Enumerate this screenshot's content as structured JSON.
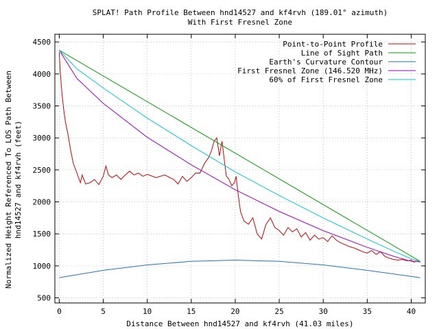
{
  "chart_data": {
    "type": "line",
    "title_line1": "SPLAT! Path Profile Between hnd14527 and kf4rvh (189.01° azimuth)",
    "title_line2": "With First Fresnel Zone",
    "xlabel": "Distance Between hnd14527 and kf4rvh (41.03 miles)",
    "ylabel_line1": "Normalized Height Referenced To LOS Path Between",
    "ylabel_line2": "hnd14527 and kf4rvh (feet)",
    "xlim": [
      -0.5,
      41.6
    ],
    "ylim": [
      420,
      4620
    ],
    "x_ticks": [
      0,
      5,
      10,
      15,
      20,
      25,
      30,
      35,
      40
    ],
    "y_ticks": [
      500,
      1000,
      1500,
      2000,
      2500,
      3000,
      3500,
      4000,
      4500
    ],
    "x_tick_labels": [
      "0",
      "5",
      "10",
      "15",
      "20",
      "25",
      "30",
      "35",
      "40"
    ],
    "y_tick_labels": [
      "500",
      "1000",
      "1500",
      "2000",
      "2500",
      "3000",
      "3500",
      "4000",
      "4500"
    ],
    "legend_position": "top-right",
    "series": [
      {
        "name": "Point-to-Point Profile",
        "color": "#cc0000",
        "x": [
          0,
          0.1,
          0.3,
          0.5,
          0.7,
          1.0,
          1.3,
          1.6,
          2.0,
          2.4,
          2.6,
          3.0,
          3.5,
          4.0,
          4.5,
          5.0,
          5.3,
          5.6,
          6.0,
          6.5,
          7.0,
          7.5,
          8.0,
          8.5,
          9.0,
          9.5,
          10.0,
          11.0,
          12.0,
          13.0,
          13.5,
          14.0,
          14.5,
          15.0,
          15.5,
          16.0,
          16.5,
          17.0,
          17.3,
          17.6,
          17.9,
          18.2,
          18.5,
          18.8,
          19.0,
          19.3,
          19.6,
          19.9,
          20.1,
          20.3,
          20.6,
          21.0,
          21.5,
          22.0,
          22.5,
          23.0,
          23.5,
          24.0,
          24.5,
          25.0,
          25.5,
          26.0,
          26.5,
          27.0,
          27.5,
          28.0,
          28.5,
          29.0,
          29.5,
          30.0,
          30.5,
          31.0,
          31.5,
          32.0,
          32.5,
          33.0,
          33.5,
          34.0,
          34.5,
          35.0,
          35.5,
          36.0,
          36.5,
          37.0,
          37.5,
          38.0,
          38.5,
          39.0,
          39.5,
          40.0,
          40.3,
          40.6,
          41.03
        ],
        "y": [
          4340,
          4050,
          3700,
          3450,
          3250,
          3050,
          2800,
          2600,
          2450,
          2300,
          2420,
          2280,
          2300,
          2350,
          2270,
          2400,
          2560,
          2420,
          2380,
          2420,
          2350,
          2420,
          2480,
          2420,
          2450,
          2400,
          2430,
          2380,
          2420,
          2350,
          2280,
          2400,
          2320,
          2380,
          2450,
          2450,
          2600,
          2700,
          2800,
          2950,
          3000,
          2720,
          2950,
          2600,
          2400,
          2350,
          2250,
          2300,
          2400,
          2150,
          1850,
          1700,
          1650,
          1750,
          1500,
          1420,
          1650,
          1750,
          1600,
          1550,
          1480,
          1600,
          1530,
          1580,
          1450,
          1520,
          1400,
          1480,
          1420,
          1440,
          1380,
          1470,
          1400,
          1360,
          1330,
          1300,
          1280,
          1250,
          1220,
          1200,
          1240,
          1180,
          1220,
          1150,
          1120,
          1100,
          1090,
          1100,
          1080,
          1090,
          1060,
          1070,
          1060
        ]
      },
      {
        "name": "Line of Sight Path",
        "color": "#00a000",
        "x": [
          0,
          41.03
        ],
        "y": [
          4370,
          1070
        ]
      },
      {
        "name": "Earth's Curvature Contour",
        "color": "#1f6fc8",
        "x": [
          0,
          5,
          10,
          15,
          20,
          25,
          30,
          35,
          41.03
        ],
        "y": [
          815,
          930,
          1015,
          1070,
          1090,
          1070,
          1015,
          930,
          815
        ]
      },
      {
        "name": "First Fresnel Zone (146.520 MHz)",
        "color": "#a000c8",
        "x": [
          0,
          2,
          5,
          10,
          15,
          20,
          25,
          30,
          35,
          38,
          40,
          41.03
        ],
        "y": [
          4370,
          3930,
          3540,
          3010,
          2580,
          2190,
          1850,
          1550,
          1290,
          1150,
          1070,
          1070
        ]
      },
      {
        "name": "60% of First Fresnel Zone",
        "color": "#00c8d8",
        "x": [
          0,
          2,
          5,
          10,
          15,
          20,
          25,
          30,
          35,
          38,
          40,
          41.03
        ],
        "y": [
          4370,
          4080,
          3780,
          3310,
          2880,
          2470,
          2100,
          1750,
          1420,
          1230,
          1110,
          1070
        ]
      }
    ]
  }
}
